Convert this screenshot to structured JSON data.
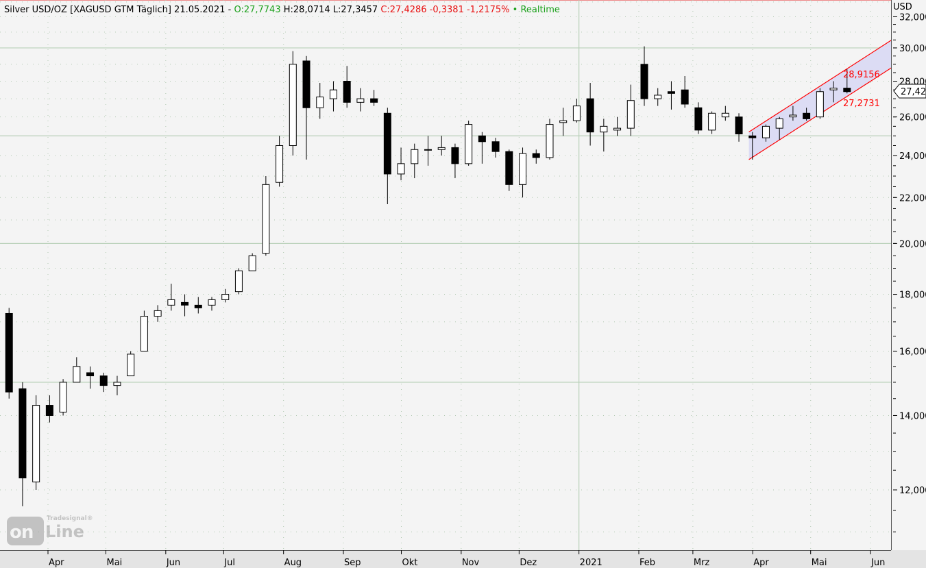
{
  "header": {
    "instrument": "Silver USD/OZ [XAGUSD GTM Täglich] 21.05.2021 -",
    "open": "O:27,7743",
    "high_low": "H:28,0714 L:27,3457",
    "close_change": "C:27,4286 -0,3381 -1,2175%",
    "realtime": "• Realtime"
  },
  "logo": {
    "brand": "Tradesignal®",
    "text_on": "on",
    "text_line": "Line"
  },
  "colors": {
    "up": "#ffffff",
    "down": "#000000",
    "channel": "#ff0000",
    "channel_fill": "#dcdcf4",
    "grid": "#b8d0b8",
    "bg": "#f4f4f4",
    "header_green": "#1aa01a",
    "header_red": "#e81010"
  },
  "chart_data": {
    "type": "candlestick",
    "title": "Silver USD/OZ [XAGUSD GTM Täglich]",
    "yunit": "USD",
    "yscale": "log",
    "ylim": [
      11,
      32.5
    ],
    "yticks": [
      "32,000",
      "30,000",
      "28,000",
      "26,000",
      "24,000",
      "22,000",
      "20,000",
      "18,000",
      "16,000",
      "14,000",
      "12,000"
    ],
    "ytick_values": [
      32,
      30,
      28,
      26,
      24,
      22,
      20,
      18,
      16,
      14,
      12
    ],
    "xticks": [
      {
        "label": "Apr",
        "date": "2020-04-01"
      },
      {
        "label": "Mai",
        "date": "2020-05-01"
      },
      {
        "label": "Jun",
        "date": "2020-06-01"
      },
      {
        "label": "Jul",
        "date": "2020-07-01"
      },
      {
        "label": "Aug",
        "date": "2020-08-01"
      },
      {
        "label": "Sep",
        "date": "2020-09-01"
      },
      {
        "label": "Okt",
        "date": "2020-10-01"
      },
      {
        "label": "Nov",
        "date": "2020-11-01"
      },
      {
        "label": "Dez",
        "date": "2020-12-01"
      },
      {
        "label": "2021",
        "date": "2021-01-01"
      },
      {
        "label": "Feb",
        "date": "2021-02-01"
      },
      {
        "label": "Mrz",
        "date": "2021-03-01"
      },
      {
        "label": "Apr",
        "date": "2021-04-01"
      },
      {
        "label": "Mai",
        "date": "2021-05-01"
      },
      {
        "label": "Jun",
        "date": "2021-06-01"
      }
    ],
    "last_price_label": "27,42",
    "candles": [
      [
        "2020-03-09",
        17.3,
        17.5,
        14.5,
        14.7
      ],
      [
        "2020-03-16",
        14.8,
        15.0,
        11.6,
        12.3
      ],
      [
        "2020-03-23",
        12.2,
        14.6,
        12.0,
        14.3
      ],
      [
        "2020-03-30",
        14.3,
        14.6,
        13.8,
        14.0
      ],
      [
        "2020-04-06",
        14.1,
        15.1,
        14.0,
        15.0
      ],
      [
        "2020-04-13",
        15.0,
        15.8,
        15.0,
        15.5
      ],
      [
        "2020-04-20",
        15.3,
        15.5,
        14.8,
        15.2
      ],
      [
        "2020-04-27",
        15.2,
        15.3,
        14.7,
        14.9
      ],
      [
        "2020-05-04",
        14.9,
        15.2,
        14.6,
        15.0
      ],
      [
        "2020-05-11",
        15.2,
        16.0,
        15.2,
        15.9
      ],
      [
        "2020-05-18",
        16.0,
        17.4,
        16.0,
        17.2
      ],
      [
        "2020-05-25",
        17.2,
        17.6,
        17.0,
        17.4
      ],
      [
        "2020-06-01",
        17.6,
        18.4,
        17.4,
        17.8
      ],
      [
        "2020-06-08",
        17.7,
        18.0,
        17.2,
        17.6
      ],
      [
        "2020-06-15",
        17.6,
        17.9,
        17.3,
        17.5
      ],
      [
        "2020-06-22",
        17.6,
        17.9,
        17.4,
        17.8
      ],
      [
        "2020-06-29",
        17.8,
        18.2,
        17.7,
        18.0
      ],
      [
        "2020-07-06",
        18.1,
        19.0,
        18.0,
        18.9
      ],
      [
        "2020-07-13",
        18.9,
        19.6,
        18.9,
        19.5
      ],
      [
        "2020-07-20",
        19.6,
        23.0,
        19.5,
        22.6
      ],
      [
        "2020-07-27",
        22.7,
        25.0,
        22.5,
        24.5
      ],
      [
        "2020-08-03",
        24.5,
        29.8,
        24.0,
        29.0
      ],
      [
        "2020-08-10",
        29.2,
        29.5,
        23.8,
        26.5
      ],
      [
        "2020-08-17",
        26.5,
        27.9,
        25.9,
        27.1
      ],
      [
        "2020-08-24",
        27.0,
        28.0,
        26.3,
        27.5
      ],
      [
        "2020-08-31",
        28.0,
        28.9,
        26.5,
        26.8
      ],
      [
        "2020-09-07",
        26.8,
        27.6,
        26.3,
        27.0
      ],
      [
        "2020-09-14",
        27.0,
        27.5,
        26.6,
        26.8
      ],
      [
        "2020-09-21",
        26.2,
        26.5,
        21.7,
        23.1
      ],
      [
        "2020-09-28",
        23.1,
        24.4,
        22.8,
        23.6
      ],
      [
        "2020-10-05",
        23.6,
        24.6,
        22.9,
        24.3
      ],
      [
        "2020-10-12",
        24.3,
        25.0,
        23.5,
        24.3
      ],
      [
        "2020-10-19",
        24.3,
        25.0,
        24.0,
        24.4
      ],
      [
        "2020-10-26",
        24.4,
        24.6,
        22.9,
        23.6
      ],
      [
        "2020-11-02",
        23.6,
        25.8,
        23.5,
        25.6
      ],
      [
        "2020-11-09",
        25.0,
        25.2,
        23.6,
        24.7
      ],
      [
        "2020-11-16",
        24.7,
        24.9,
        23.9,
        24.2
      ],
      [
        "2020-11-23",
        24.2,
        24.3,
        22.3,
        22.6
      ],
      [
        "2020-11-30",
        22.6,
        24.4,
        22.0,
        24.1
      ],
      [
        "2020-12-07",
        24.1,
        24.3,
        23.6,
        23.9
      ],
      [
        "2020-12-14",
        23.9,
        25.9,
        23.8,
        25.6
      ],
      [
        "2020-12-21",
        25.7,
        26.5,
        25.0,
        25.8
      ],
      [
        "2020-12-28",
        25.8,
        27.0,
        25.7,
        26.6
      ],
      [
        "2021-01-04",
        27.0,
        27.9,
        24.5,
        25.2
      ],
      [
        "2021-01-11",
        25.2,
        25.9,
        24.2,
        25.5
      ],
      [
        "2021-01-18",
        25.3,
        26.0,
        25.0,
        25.4
      ],
      [
        "2021-01-25",
        25.4,
        27.8,
        25.0,
        26.9
      ],
      [
        "2021-02-01",
        29.0,
        30.1,
        26.6,
        27.0
      ],
      [
        "2021-02-08",
        27.0,
        27.6,
        26.6,
        27.2
      ],
      [
        "2021-02-15",
        27.4,
        28.0,
        26.4,
        27.3
      ],
      [
        "2021-02-22",
        27.5,
        28.3,
        26.5,
        26.7
      ],
      [
        "2021-03-01",
        26.5,
        26.8,
        25.1,
        25.3
      ],
      [
        "2021-03-08",
        25.3,
        26.3,
        25.1,
        26.2
      ],
      [
        "2021-03-15",
        26.0,
        26.6,
        25.8,
        26.2
      ],
      [
        "2021-03-22",
        26.0,
        26.2,
        24.7,
        25.1
      ],
      [
        "2021-03-29",
        25.0,
        25.2,
        23.8,
        24.9
      ],
      [
        "2021-04-05",
        24.9,
        25.6,
        24.7,
        25.5
      ],
      [
        "2021-04-12",
        25.4,
        26.0,
        24.8,
        25.9
      ],
      [
        "2021-04-19",
        26.0,
        26.6,
        25.8,
        26.1
      ],
      [
        "2021-04-26",
        26.2,
        26.5,
        25.8,
        25.9
      ],
      [
        "2021-05-03",
        26.0,
        27.6,
        25.9,
        27.4
      ],
      [
        "2021-05-10",
        27.5,
        28.0,
        26.8,
        27.6
      ],
      [
        "2021-05-17",
        27.6,
        28.7,
        27.3,
        27.4
      ]
    ],
    "candle_fields": [
      "date",
      "open",
      "high",
      "low",
      "close"
    ],
    "channel": {
      "upper": [
        [
          "2021-03-30",
          25.2
        ],
        [
          "2021-06-12",
          30.5
        ]
      ],
      "lower": [
        [
          "2021-03-30",
          23.8
        ],
        [
          "2021-06-12",
          28.8
        ]
      ],
      "upper_label": "28,9156",
      "lower_label": "27,2731"
    }
  }
}
